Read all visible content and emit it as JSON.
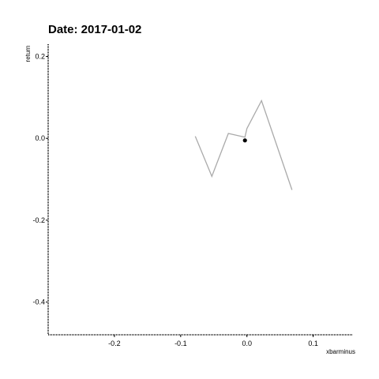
{
  "chart_data": {
    "type": "line",
    "title": "Date: 2017-01-02",
    "xlabel": "xbarminus",
    "ylabel": "return",
    "xlim": [
      -0.3,
      0.16
    ],
    "ylim": [
      -0.48,
      0.23
    ],
    "x_ticks": [
      -0.2,
      -0.1,
      0.0,
      0.1
    ],
    "x_tick_labels": [
      "-0.2",
      "-0.1",
      "0.0",
      "0.1"
    ],
    "y_ticks": [
      0.2,
      0.0,
      -0.2,
      -0.4
    ],
    "y_tick_labels": [
      "0.2",
      "0.0",
      "-0.2",
      "-0.4"
    ],
    "grid": false,
    "series": [
      {
        "color": "#aaaaaa",
        "x": [
          -0.078,
          -0.053,
          -0.028,
          -0.003,
          0.0,
          0.022,
          0.068
        ],
        "y": [
          0.005,
          -0.093,
          0.012,
          0.003,
          0.024,
          0.092,
          -0.126
        ]
      }
    ],
    "highlight_point": {
      "x": -0.003,
      "y": -0.005,
      "color": "#000000"
    }
  }
}
